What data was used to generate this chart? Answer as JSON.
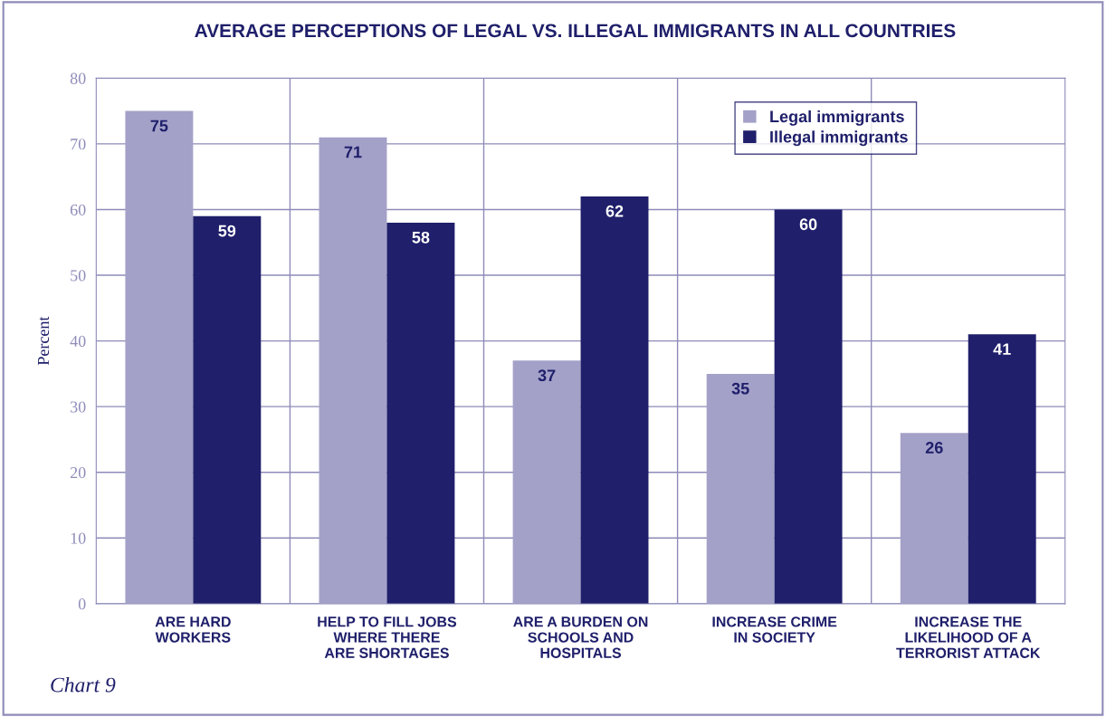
{
  "chart_data": {
    "type": "bar",
    "title": "AVERAGE PERCEPTIONS OF LEGAL VS. ILLEGAL IMMIGRANTS IN ALL COUNTRIES",
    "ylabel": "Percent",
    "categories": [
      "ARE HARD\nWORKERS",
      "HELP TO FILL JOBS\nWHERE THERE\nARE SHORTAGES",
      "ARE A BURDEN ON\nSCHOOLS AND\nHOSPITALS",
      "INCREASE CRIME\nIN SOCIETY",
      "INCREASE THE\nLIKELIHOOD OF A\nTERRORIST ATTACK"
    ],
    "series": [
      {
        "name": "Legal immigrants",
        "color": "#a3a1c8",
        "values": [
          75,
          71,
          37,
          35,
          26
        ]
      },
      {
        "name": "Illegal immigrants",
        "color": "#1f1f6b",
        "values": [
          59,
          58,
          62,
          60,
          41
        ]
      }
    ],
    "ylim": [
      0,
      80
    ],
    "yticks": [
      0,
      10,
      20,
      30,
      40,
      50,
      60,
      70,
      80
    ],
    "grid": true,
    "legend": "top right",
    "data_labels": true,
    "annotations": [
      "Chart 9"
    ]
  }
}
